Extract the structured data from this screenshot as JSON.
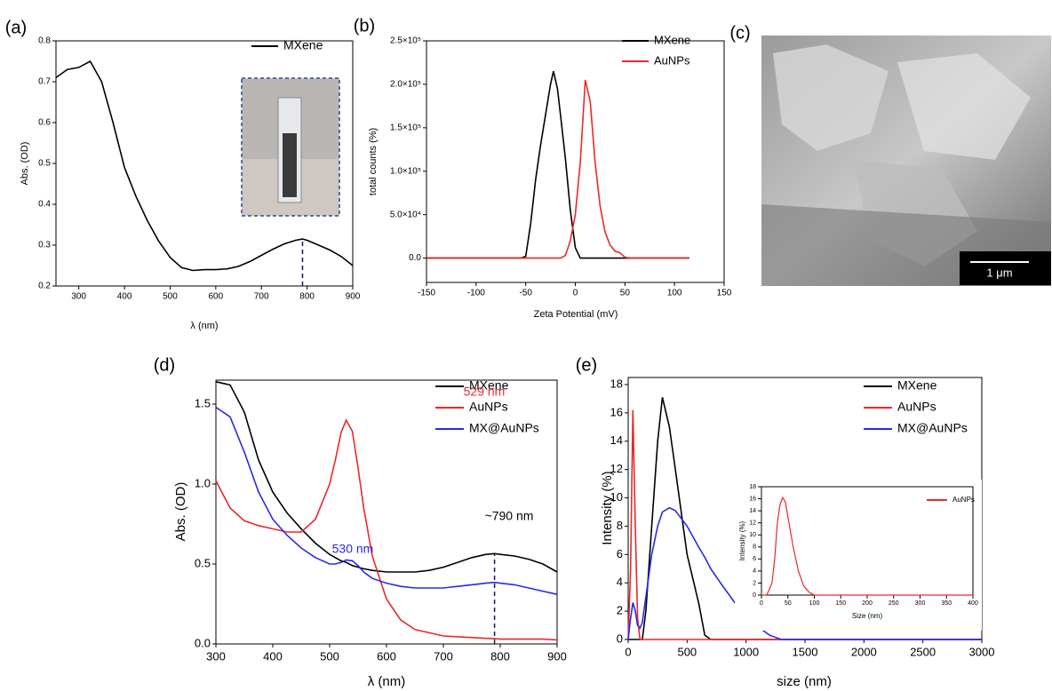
{
  "chart_data": [
    {
      "type": "line",
      "panel_label": "(a)",
      "xlabel": "λ (nm)",
      "ylabel": "Abs. (OD)",
      "x": [
        250,
        275,
        300,
        325,
        350,
        375,
        400,
        425,
        450,
        475,
        500,
        525,
        550,
        575,
        600,
        625,
        650,
        675,
        700,
        725,
        750,
        775,
        790,
        800,
        825,
        850,
        875,
        900
      ],
      "series": [
        {
          "name": "MXene",
          "color": "#000000",
          "values": [
            0.71,
            0.73,
            0.735,
            0.75,
            0.7,
            0.6,
            0.49,
            0.42,
            0.36,
            0.31,
            0.27,
            0.245,
            0.238,
            0.24,
            0.24,
            0.242,
            0.248,
            0.26,
            0.275,
            0.29,
            0.303,
            0.312,
            0.315,
            0.312,
            0.3,
            0.288,
            0.272,
            0.25
          ]
        }
      ],
      "xlim": [
        250,
        900
      ],
      "xticks": [
        300,
        400,
        500,
        600,
        700,
        800,
        900
      ],
      "ylim": [
        0.2,
        0.8
      ],
      "yticks": [
        0.2,
        0.3,
        0.4,
        0.5,
        0.6,
        0.7,
        0.8
      ],
      "marker_x": 790
    },
    {
      "type": "line",
      "panel_label": "(b)",
      "xlabel": "Zeta Potential (mV)",
      "ylabel": "total counts (%)",
      "x": [
        -150,
        -60,
        -55,
        -50,
        -45,
        -40,
        -35,
        -30,
        -25,
        -22,
        -18,
        -15,
        -10,
        -5,
        0,
        5,
        10,
        15,
        20,
        25,
        30,
        35,
        40,
        45,
        50,
        55,
        115
      ],
      "series": [
        {
          "name": "MXene",
          "color": "#000000",
          "values": [
            0,
            0,
            0,
            2000,
            40000,
            90000,
            130000,
            165000,
            200000,
            215000,
            195000,
            165000,
            115000,
            55000,
            12000,
            0,
            0,
            0,
            0,
            0,
            0,
            0,
            0,
            0,
            0,
            0,
            0
          ]
        },
        {
          "name": "AuNPs",
          "color": "#e8292b",
          "values": [
            0,
            0,
            0,
            0,
            0,
            0,
            0,
            0,
            0,
            0,
            0,
            0,
            3000,
            20000,
            50000,
            110000,
            205000,
            180000,
            110000,
            60000,
            30000,
            15000,
            8000,
            6000,
            1000,
            0,
            0
          ]
        }
      ],
      "xlim": [
        -150,
        150
      ],
      "xticks": [
        -150,
        -100,
        -50,
        0,
        50,
        100,
        150
      ],
      "ylim": [
        -28000,
        250000
      ],
      "yticks": [
        {
          "value": 0,
          "label": "0.0"
        },
        {
          "value": 50000,
          "label": "5.0×10⁴"
        },
        {
          "value": 100000,
          "label": "1.0×10⁵"
        },
        {
          "value": 150000,
          "label": "1.5×10⁵"
        },
        {
          "value": 200000,
          "label": "2.0×10⁵"
        },
        {
          "value": 250000,
          "label": "2.5×10⁵"
        }
      ]
    },
    {
      "type": "line",
      "panel_label": "(d)",
      "xlabel": "λ (nm)",
      "ylabel": "Abs. (OD)",
      "x": [
        300,
        325,
        350,
        375,
        400,
        425,
        450,
        475,
        500,
        510,
        520,
        529,
        540,
        550,
        560,
        575,
        600,
        625,
        650,
        675,
        700,
        725,
        750,
        775,
        790,
        800,
        825,
        850,
        875,
        900
      ],
      "series": [
        {
          "name": "MXene",
          "color": "#000000",
          "values": [
            1.64,
            1.62,
            1.45,
            1.15,
            0.95,
            0.82,
            0.72,
            0.63,
            0.56,
            0.54,
            0.52,
            0.51,
            0.49,
            0.48,
            0.47,
            0.46,
            0.45,
            0.45,
            0.45,
            0.46,
            0.48,
            0.51,
            0.54,
            0.56,
            0.565,
            0.56,
            0.55,
            0.53,
            0.5,
            0.45
          ]
        },
        {
          "name": "AuNPs",
          "color": "#e8292b",
          "values": [
            1.02,
            0.85,
            0.77,
            0.74,
            0.72,
            0.7,
            0.7,
            0.78,
            1.0,
            1.15,
            1.32,
            1.4,
            1.33,
            1.1,
            0.85,
            0.55,
            0.28,
            0.15,
            0.09,
            0.07,
            0.05,
            0.045,
            0.04,
            0.035,
            0.033,
            0.03,
            0.03,
            0.03,
            0.03,
            0.025
          ]
        },
        {
          "name": "MX@AuNPs",
          "color": "#2a2ae0",
          "values": [
            1.48,
            1.42,
            1.2,
            0.95,
            0.78,
            0.68,
            0.6,
            0.54,
            0.5,
            0.5,
            0.51,
            0.525,
            0.52,
            0.49,
            0.45,
            0.41,
            0.38,
            0.36,
            0.35,
            0.35,
            0.35,
            0.36,
            0.37,
            0.38,
            0.385,
            0.38,
            0.37,
            0.35,
            0.33,
            0.31
          ]
        }
      ],
      "xlim": [
        300,
        900
      ],
      "xticks": [
        300,
        400,
        500,
        600,
        700,
        800,
        900
      ],
      "ylim": [
        0,
        1.65
      ],
      "yticks": [
        {
          "value": 0,
          "label": "0.0"
        },
        0.5,
        {
          "value": 1,
          "label": "1.0"
        },
        1.5
      ],
      "annotations": [
        "529 nm",
        "530 nm",
        "~790 nm"
      ],
      "marker_x": 790
    },
    {
      "type": "line",
      "panel_label": "(e)",
      "xlabel": "size (nm)",
      "ylabel": "Intensity (%)",
      "x": [
        0,
        20,
        40,
        60,
        80,
        100,
        120,
        150,
        200,
        250,
        290,
        350,
        400,
        500,
        600,
        650,
        700,
        800,
        1000,
        1200,
        1300,
        1500,
        3000
      ],
      "series": [
        {
          "name": "MXene",
          "color": "#000000",
          "values": [
            0,
            0,
            0,
            0,
            0,
            0,
            0,
            2,
            8,
            14,
            17.1,
            15,
            12,
            6,
            2.5,
            0.3,
            0,
            0,
            0,
            0,
            0,
            0,
            0
          ]
        },
        {
          "name": "AuNPs",
          "color": "#e8292b",
          "values": [
            0,
            5,
            16.2,
            8,
            1.5,
            0,
            0,
            0,
            0,
            0,
            0,
            0,
            0,
            0,
            0,
            0,
            0,
            0,
            0,
            0,
            0,
            0,
            0
          ]
        },
        {
          "name": "MX@AuNPs",
          "color": "#2a2ae0",
          "values": [
            0,
            1.5,
            2.6,
            2.0,
            1.0,
            0.8,
            1.2,
            3,
            6,
            8,
            9,
            9.3,
            9.1,
            8,
            6.5,
            5.8,
            5,
            3.8,
            1.5,
            0.3,
            0,
            0,
            0
          ]
        }
      ],
      "xlim": [
        0,
        3000
      ],
      "xticks": [
        0,
        500,
        1000,
        1500,
        2000,
        2500,
        3000
      ],
      "ylim": [
        0,
        18.5
      ],
      "yticks": [
        0,
        2,
        4,
        6,
        8,
        10,
        12,
        14,
        16,
        18
      ]
    },
    {
      "type": "line",
      "xlabel": "Size (nm)",
      "ylabel": "Intensity (%)",
      "x": [
        0,
        10,
        20,
        25,
        30,
        35,
        40,
        45,
        50,
        60,
        70,
        80,
        90,
        100,
        120,
        400
      ],
      "series": [
        {
          "name": "AuNPs",
          "color": "#e8292b",
          "values": [
            0,
            0,
            2,
            6,
            12,
            15,
            16.2,
            15.5,
            13,
            8,
            4,
            1.5,
            0.5,
            0,
            0,
            0
          ]
        }
      ],
      "xlim": [
        0,
        400
      ],
      "xticks": [
        0,
        50,
        100,
        150,
        200,
        250,
        300,
        350,
        400
      ],
      "ylim": [
        0,
        18
      ],
      "yticks": [
        0,
        2,
        4,
        6,
        8,
        10,
        12,
        14,
        16,
        18
      ]
    }
  ],
  "image_panel": {
    "panel_label": "(c)",
    "scale_bar": "1 μm"
  }
}
